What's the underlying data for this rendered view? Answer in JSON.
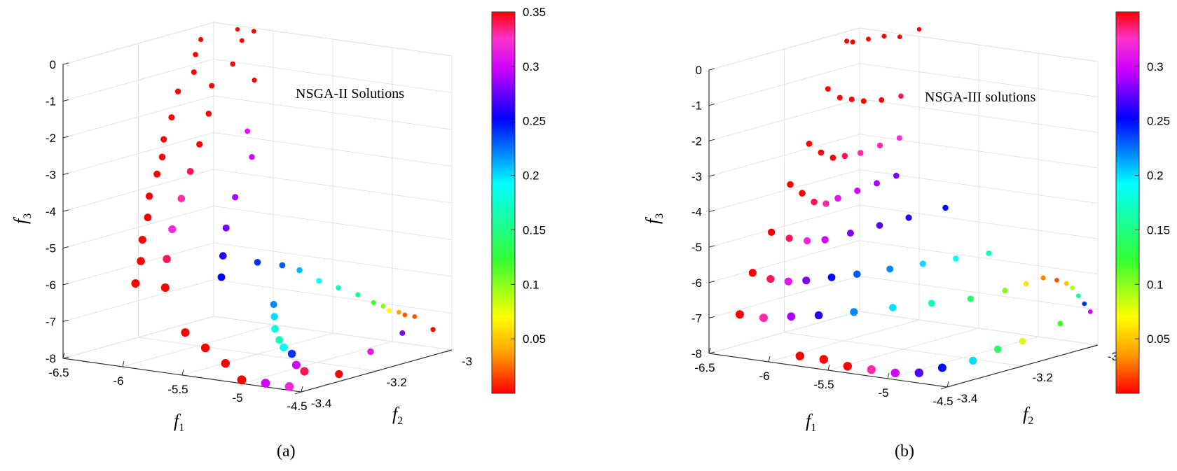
{
  "chart_data": [
    {
      "type": "scatter3d",
      "panel_label": "(a)",
      "legend_text": "NSGA-II Solutions",
      "xlabel": "f1",
      "ylabel": "f2",
      "zlabel": "f3",
      "xlim": [
        -6.5,
        -4.5
      ],
      "ylim": [
        -3.4,
        -3.0
      ],
      "zlim": [
        -8,
        0
      ],
      "x_ticks": [
        "-6.5",
        "-6",
        "-5.5",
        "-5",
        "-4.5"
      ],
      "y_ticks": [
        "-3.4",
        "-3.2",
        "-3"
      ],
      "z_ticks": [
        "0",
        "-1",
        "-2",
        "-3",
        "-4",
        "-5",
        "-6",
        "-7",
        "-8"
      ],
      "colorbar": {
        "min": 0.0,
        "max": 0.35,
        "ticks": [
          "0.35",
          "0.3",
          "0.25",
          "0.2",
          "0.15",
          "0.1",
          "0.05"
        ]
      },
      "grid": true,
      "description": "Front of Pareto solutions colored by a fourth objective; red (high) near f1=-6.5, transitioning to cyan/green/yellow toward f1=-4.5, f2=-3.0.",
      "points": [
        [
          -6.45,
          -3.05,
          -0.3,
          0.35
        ],
        [
          -6.4,
          -3.08,
          -0.6,
          0.35
        ],
        [
          -6.35,
          -3.1,
          -1.0,
          0.35
        ],
        [
          -6.42,
          -3.12,
          -1.5,
          0.35
        ],
        [
          -6.38,
          -3.15,
          -2.1,
          0.35
        ],
        [
          -6.35,
          -3.18,
          -2.6,
          0.35
        ],
        [
          -6.3,
          -3.2,
          -3.0,
          0.35
        ],
        [
          -6.28,
          -3.22,
          -3.4,
          0.35
        ],
        [
          -6.25,
          -3.25,
          -3.9,
          0.35
        ],
        [
          -6.2,
          -3.27,
          -4.4,
          0.35
        ],
        [
          -6.15,
          -3.3,
          -4.9,
          0.35
        ],
        [
          -6.1,
          -3.32,
          -5.4,
          0.35
        ],
        [
          -6.05,
          -3.35,
          -5.9,
          0.35
        ],
        [
          -6.3,
          -3.0,
          -0.1,
          0.35
        ],
        [
          -6.2,
          -3.02,
          -0.3,
          0.35
        ],
        [
          -6.1,
          -3.02,
          0.0,
          0.35
        ],
        [
          -6.15,
          -3.06,
          -0.8,
          0.35
        ],
        [
          -6.2,
          -3.1,
          -1.3,
          0.35
        ],
        [
          -6.1,
          -3.14,
          -1.9,
          0.35
        ],
        [
          -6.0,
          -3.05,
          -1.2,
          0.35
        ],
        [
          -6.05,
          -3.18,
          -2.6,
          0.35
        ],
        [
          -6.0,
          -3.22,
          -3.2,
          0.34
        ],
        [
          -5.95,
          -3.26,
          -3.8,
          0.33
        ],
        [
          -5.9,
          -3.3,
          -4.5,
          0.32
        ],
        [
          -5.85,
          -3.33,
          -5.2,
          0.34
        ],
        [
          -5.8,
          -3.35,
          -5.9,
          0.35
        ],
        [
          -5.9,
          -3.1,
          -2.4,
          0.31
        ],
        [
          -5.8,
          -3.12,
          -3.0,
          0.3
        ],
        [
          -5.75,
          -3.18,
          -3.9,
          0.29
        ],
        [
          -5.7,
          -3.22,
          -4.6,
          0.28
        ],
        [
          -5.6,
          -3.26,
          -5.2,
          0.26
        ],
        [
          -5.55,
          -3.28,
          -5.7,
          0.25
        ],
        [
          -5.5,
          -3.2,
          -5.5,
          0.24
        ],
        [
          -5.45,
          -3.15,
          -5.7,
          0.23
        ],
        [
          -5.4,
          -3.12,
          -5.9,
          0.21
        ],
        [
          -5.3,
          -3.1,
          -6.2,
          0.19
        ],
        [
          -5.2,
          -3.08,
          -6.4,
          0.17
        ],
        [
          -5.1,
          -3.06,
          -6.6,
          0.15
        ],
        [
          -5.0,
          -3.05,
          -6.8,
          0.12
        ],
        [
          -4.95,
          -3.04,
          -6.9,
          0.1
        ],
        [
          -4.9,
          -3.04,
          -7.0,
          0.07
        ],
        [
          -4.85,
          -3.03,
          -7.05,
          0.04
        ],
        [
          -4.8,
          -3.03,
          -7.1,
          0.02
        ],
        [
          -4.75,
          -3.02,
          -7.15,
          0.02
        ],
        [
          -5.3,
          -3.22,
          -6.5,
          0.22
        ],
        [
          -5.2,
          -3.25,
          -6.7,
          0.2
        ],
        [
          -5.1,
          -3.28,
          -6.9,
          0.18
        ],
        [
          -5.0,
          -3.3,
          -7.1,
          0.17
        ],
        [
          -4.9,
          -3.32,
          -7.2,
          0.19
        ],
        [
          -4.8,
          -3.33,
          -7.3,
          0.24
        ],
        [
          -4.7,
          -3.35,
          -7.5,
          0.3
        ],
        [
          -4.6,
          -3.36,
          -7.6,
          0.34
        ],
        [
          -5.6,
          -3.36,
          -7.0,
          0.35
        ],
        [
          -5.4,
          -3.37,
          -7.3,
          0.35
        ],
        [
          -5.2,
          -3.38,
          -7.6,
          0.35
        ],
        [
          -5.0,
          -3.4,
          -7.9,
          0.35
        ],
        [
          -4.8,
          -3.4,
          -7.9,
          0.3
        ],
        [
          -4.6,
          -3.4,
          -7.9,
          0.32
        ],
        [
          -4.5,
          -3.3,
          -7.8,
          0.35
        ],
        [
          -4.55,
          -3.2,
          -7.5,
          0.31
        ],
        [
          -4.6,
          -3.1,
          -7.3,
          0.28
        ],
        [
          -4.5,
          -3.05,
          -7.3,
          0.35
        ]
      ]
    },
    {
      "type": "scatter3d",
      "panel_label": "(b)",
      "legend_text": "NSGA-III solutions",
      "xlabel": "f1",
      "ylabel": "f2",
      "zlabel": "f3",
      "xlim": [
        -6.5,
        -4.5
      ],
      "ylim": [
        -3.4,
        -3.0
      ],
      "zlim": [
        -8,
        0
      ],
      "x_ticks": [
        "-6.5",
        "-6",
        "-5.5",
        "-5",
        "-4.5"
      ],
      "y_ticks": [
        "-3.4",
        "-3.2",
        "-3"
      ],
      "z_ticks": [
        "0",
        "-1",
        "-2",
        "-3",
        "-4",
        "-5",
        "-6",
        "-7",
        "-8"
      ],
      "colorbar": {
        "min": 0.0,
        "max": 0.35,
        "ticks": [
          "0.3",
          "0.25",
          "0.2",
          "0.15",
          "0.1",
          "0.05"
        ]
      },
      "grid": true,
      "description": "More structured front: rows of solutions stepping down from f3=0 (red) to f3=-8; blue/cyan/green/yellow points near f1=-4.5, f2=-3.0.",
      "points": [
        [
          -6.45,
          -3.05,
          -0.2,
          0.35
        ],
        [
          -6.4,
          -3.05,
          -0.2,
          0.35
        ],
        [
          -6.3,
          -3.04,
          -0.1,
          0.35
        ],
        [
          -6.2,
          -3.03,
          0.0,
          0.35
        ],
        [
          -6.1,
          -3.02,
          0.0,
          0.35
        ],
        [
          -6.0,
          -3.0,
          0.2,
          0.35
        ],
        [
          -6.45,
          -3.1,
          -1.4,
          0.35
        ],
        [
          -6.35,
          -3.1,
          -1.6,
          0.35
        ],
        [
          -6.25,
          -3.1,
          -1.6,
          0.35
        ],
        [
          -6.15,
          -3.1,
          -1.6,
          0.35
        ],
        [
          -6.0,
          -3.1,
          -1.5,
          0.35
        ],
        [
          -5.9,
          -3.08,
          -1.4,
          0.34
        ],
        [
          -6.45,
          -3.15,
          -2.8,
          0.35
        ],
        [
          -6.35,
          -3.15,
          -3.0,
          0.35
        ],
        [
          -6.25,
          -3.15,
          -3.1,
          0.35
        ],
        [
          -6.15,
          -3.15,
          -3.0,
          0.34
        ],
        [
          -6.05,
          -3.14,
          -2.9,
          0.33
        ],
        [
          -5.95,
          -3.12,
          -2.7,
          0.33
        ],
        [
          -5.85,
          -3.1,
          -2.5,
          0.32
        ],
        [
          -6.45,
          -3.2,
          -3.8,
          0.35
        ],
        [
          -6.35,
          -3.2,
          -4.0,
          0.35
        ],
        [
          -6.25,
          -3.2,
          -4.2,
          0.34
        ],
        [
          -6.15,
          -3.2,
          -4.2,
          0.33
        ],
        [
          -6.05,
          -3.2,
          -4.0,
          0.31
        ],
        [
          -5.95,
          -3.18,
          -3.8,
          0.3
        ],
        [
          -5.85,
          -3.16,
          -3.6,
          0.29
        ],
        [
          -5.75,
          -3.14,
          -3.4,
          0.28
        ],
        [
          -6.45,
          -3.25,
          -5.0,
          0.35
        ],
        [
          -6.3,
          -3.25,
          -5.1,
          0.34
        ],
        [
          -6.15,
          -3.25,
          -5.1,
          0.32
        ],
        [
          -6.0,
          -3.25,
          -5.0,
          0.3
        ],
        [
          -5.85,
          -3.23,
          -4.8,
          0.28
        ],
        [
          -5.7,
          -3.2,
          -4.6,
          0.27
        ],
        [
          -5.55,
          -3.17,
          -4.4,
          0.26
        ],
        [
          -5.4,
          -3.12,
          -4.2,
          0.25
        ],
        [
          -6.45,
          -3.3,
          -6.0,
          0.35
        ],
        [
          -6.3,
          -3.3,
          -6.1,
          0.34
        ],
        [
          -6.15,
          -3.3,
          -6.1,
          0.31
        ],
        [
          -6.0,
          -3.3,
          -6.0,
          0.28
        ],
        [
          -5.85,
          -3.28,
          -5.9,
          0.25
        ],
        [
          -5.7,
          -3.26,
          -5.8,
          0.23
        ],
        [
          -5.55,
          -3.22,
          -5.7,
          0.22
        ],
        [
          -5.4,
          -3.18,
          -5.6,
          0.2
        ],
        [
          -5.25,
          -3.14,
          -5.5,
          0.19
        ],
        [
          -5.1,
          -3.1,
          -5.4,
          0.17
        ],
        [
          -6.4,
          -3.35,
          -7.0,
          0.35
        ],
        [
          -6.2,
          -3.35,
          -7.0,
          0.33
        ],
        [
          -6.0,
          -3.34,
          -6.9,
          0.29
        ],
        [
          -5.8,
          -3.33,
          -6.8,
          0.26
        ],
        [
          -5.6,
          -3.3,
          -6.7,
          0.22
        ],
        [
          -5.4,
          -3.26,
          -6.6,
          0.2
        ],
        [
          -5.2,
          -3.22,
          -6.5,
          0.17
        ],
        [
          -5.0,
          -3.18,
          -6.4,
          0.14
        ],
        [
          -4.9,
          -3.12,
          -6.3,
          0.1
        ],
        [
          -4.85,
          -3.08,
          -6.2,
          0.06
        ],
        [
          -4.8,
          -3.05,
          -6.1,
          0.03
        ],
        [
          -4.75,
          -3.03,
          -6.2,
          0.02
        ],
        [
          -4.7,
          -3.02,
          -6.3,
          0.05
        ],
        [
          -4.65,
          -3.02,
          -6.4,
          0.09
        ],
        [
          -4.6,
          -3.02,
          -6.6,
          0.16
        ],
        [
          -4.55,
          -3.02,
          -6.8,
          0.24
        ],
        [
          -4.5,
          -3.02,
          -7.0,
          0.3
        ],
        [
          -5.8,
          -3.38,
          -7.8,
          0.35
        ],
        [
          -5.6,
          -3.38,
          -7.8,
          0.35
        ],
        [
          -5.4,
          -3.38,
          -7.9,
          0.35
        ],
        [
          -5.2,
          -3.38,
          -7.9,
          0.33
        ],
        [
          -5.0,
          -3.38,
          -7.9,
          0.3
        ],
        [
          -4.8,
          -3.38,
          -7.8,
          0.27
        ],
        [
          -4.7,
          -3.35,
          -7.7,
          0.25
        ],
        [
          -4.6,
          -3.3,
          -7.6,
          0.2
        ],
        [
          -4.55,
          -3.25,
          -7.4,
          0.14
        ],
        [
          -4.5,
          -3.2,
          -7.3,
          0.08
        ],
        [
          -4.5,
          -3.1,
          -7.1,
          0.12
        ]
      ]
    }
  ]
}
